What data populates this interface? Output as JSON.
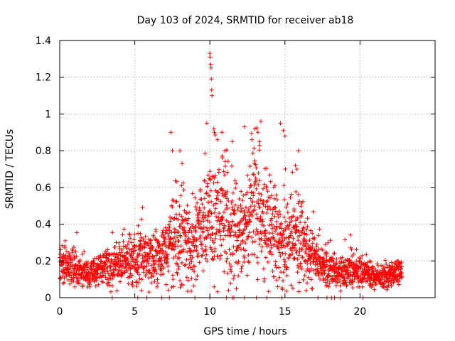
{
  "chart_data": {
    "type": "scatter",
    "title": "Day 103 of 2024, SRMTID for receiver ab18",
    "xlabel": "GPS time / hours",
    "ylabel": "SRMTID / TECUs",
    "xlim": [
      0,
      25
    ],
    "ylim": [
      0,
      1.4
    ],
    "x_ticks": [
      0,
      5,
      10,
      15,
      20
    ],
    "x_tick_labels": [
      "0",
      "5",
      "10",
      "15",
      "20"
    ],
    "y_ticks": [
      0,
      0.2,
      0.4,
      0.6,
      0.8,
      1.0,
      1.2,
      1.4
    ],
    "y_tick_labels": [
      "0",
      "0.2",
      "0.4",
      "0.6",
      "0.8",
      "1",
      "1.2",
      "1.4"
    ],
    "grid": true,
    "marker": "+",
    "series": [
      {
        "name": "SRMTID",
        "color": "#ff0000",
        "envelope": {
          "hours": [
            0.0,
            0.5,
            1.0,
            1.5,
            2.0,
            2.5,
            3.0,
            3.5,
            4.0,
            4.5,
            5.0,
            5.5,
            6.0,
            6.5,
            7.0,
            7.5,
            8.0,
            8.5,
            9.0,
            9.5,
            10.0,
            10.5,
            11.0,
            11.5,
            12.0,
            12.5,
            13.0,
            13.5,
            14.0,
            14.5,
            15.0,
            15.5,
            16.0,
            16.5,
            17.0,
            17.5,
            18.0,
            18.5,
            19.0,
            19.5,
            20.0,
            20.5,
            21.0,
            21.5,
            22.0,
            22.5,
            22.8
          ],
          "typical": [
            0.16,
            0.18,
            0.15,
            0.14,
            0.13,
            0.15,
            0.17,
            0.16,
            0.18,
            0.19,
            0.22,
            0.25,
            0.2,
            0.22,
            0.24,
            0.3,
            0.35,
            0.3,
            0.28,
            0.36,
            0.45,
            0.42,
            0.38,
            0.35,
            0.32,
            0.4,
            0.5,
            0.45,
            0.38,
            0.32,
            0.3,
            0.35,
            0.32,
            0.26,
            0.2,
            0.17,
            0.15,
            0.14,
            0.15,
            0.16,
            0.14,
            0.13,
            0.11,
            0.12,
            0.13,
            0.14,
            0.14
          ],
          "spread": [
            0.07,
            0.08,
            0.07,
            0.06,
            0.06,
            0.07,
            0.08,
            0.08,
            0.08,
            0.09,
            0.1,
            0.12,
            0.1,
            0.1,
            0.12,
            0.16,
            0.2,
            0.17,
            0.15,
            0.2,
            0.25,
            0.24,
            0.22,
            0.2,
            0.18,
            0.22,
            0.26,
            0.24,
            0.2,
            0.18,
            0.17,
            0.18,
            0.16,
            0.12,
            0.09,
            0.08,
            0.07,
            0.06,
            0.07,
            0.07,
            0.06,
            0.06,
            0.05,
            0.05,
            0.05,
            0.05,
            0.05
          ]
        },
        "outliers": [
          [
            7.4,
            0.9
          ],
          [
            7.5,
            0.8
          ],
          [
            8.0,
            0.8
          ],
          [
            9.8,
            0.95
          ],
          [
            10.0,
            1.33
          ],
          [
            10.02,
            1.31
          ],
          [
            10.05,
            1.27
          ],
          [
            10.08,
            1.25
          ],
          [
            10.1,
            1.19
          ],
          [
            10.12,
            1.13
          ],
          [
            10.14,
            1.1
          ],
          [
            10.3,
            0.9
          ],
          [
            10.5,
            0.86
          ],
          [
            10.8,
            0.9
          ],
          [
            11.0,
            0.8
          ],
          [
            12.3,
            0.93
          ],
          [
            13.0,
            0.92
          ],
          [
            13.2,
            0.9
          ],
          [
            13.4,
            0.96
          ],
          [
            13.3,
            0.85
          ],
          [
            14.7,
            0.95
          ],
          [
            14.9,
            0.91
          ],
          [
            15.0,
            0.88
          ],
          [
            15.9,
            0.8
          ],
          [
            15.8,
            0.7
          ],
          [
            15.7,
            0.72
          ],
          [
            11.5,
            0.85
          ],
          [
            12.8,
            0.86
          ]
        ],
        "zero_points": [
          3.5,
          5.2,
          5.8,
          6.8,
          7.3,
          9.0,
          10.0,
          11.1,
          11.5,
          11.6,
          12.3,
          13.1,
          13.8,
          14.8,
          17.2,
          17.8,
          18.1,
          18.3,
          18.7,
          20.2
        ]
      }
    ]
  }
}
